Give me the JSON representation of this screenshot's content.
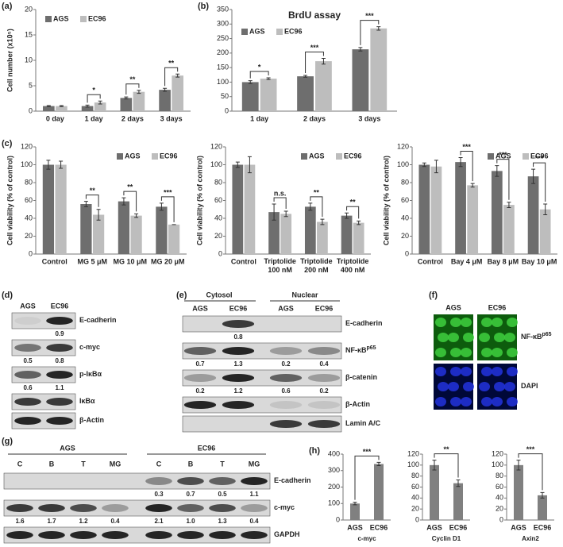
{
  "chart_data": [
    {
      "type": "bar",
      "panel": "(a)",
      "ylabel": "Cell number (x10⁵)",
      "categories": [
        "0 day",
        "1 day",
        "2 days",
        "3 days"
      ],
      "series": [
        {
          "name": "AGS",
          "color": "#6e6e6e",
          "values": [
            1,
            1,
            2.6,
            4.2
          ],
          "errors": [
            0.1,
            0.2,
            0.2,
            0.3
          ]
        },
        {
          "name": "EC96",
          "color": "#bdbdbd",
          "values": [
            1,
            1.7,
            3.8,
            7
          ],
          "errors": [
            0.1,
            0.3,
            0.3,
            0.3
          ]
        }
      ],
      "significance": [
        null,
        "*",
        "**",
        "**"
      ],
      "ylim": [
        0,
        20
      ],
      "yticks": [
        0,
        5,
        10,
        15,
        20
      ],
      "legend": "upper-left"
    },
    {
      "type": "bar",
      "panel": "(b)",
      "title": "BrdU assay",
      "categories": [
        "1 day",
        "2 days",
        "3 days"
      ],
      "series": [
        {
          "name": "AGS",
          "color": "#6e6e6e",
          "values": [
            100,
            120,
            213
          ],
          "errors": [
            5,
            3,
            6
          ]
        },
        {
          "name": "EC96",
          "color": "#bdbdbd",
          "values": [
            112,
            172,
            285
          ],
          "errors": [
            3,
            10,
            6
          ]
        }
      ],
      "significance": [
        "*",
        "***",
        "***"
      ],
      "ylim": [
        0,
        350
      ],
      "yticks": [
        0,
        50,
        100,
        150,
        200,
        250,
        300,
        350
      ],
      "legend": "upper-left"
    },
    {
      "type": "bar",
      "panel": "(c)",
      "ylabel": "Cell viability (% of control)",
      "categories": [
        "Control",
        "MG 5 μM",
        "MG 10 μM",
        "MG 20 μM"
      ],
      "series": [
        {
          "name": "AGS",
          "color": "#6e6e6e",
          "values": [
            100,
            56,
            59,
            53
          ],
          "errors": [
            5,
            3,
            4,
            4
          ]
        },
        {
          "name": "EC96",
          "color": "#bdbdbd",
          "values": [
            100,
            44,
            43,
            33
          ],
          "errors": [
            4,
            6,
            2,
            0
          ]
        }
      ],
      "significance": [
        null,
        "**",
        "**",
        "***"
      ],
      "ylim": [
        0,
        120
      ],
      "yticks": [
        0,
        20,
        40,
        60,
        80,
        100,
        120
      ],
      "legend": "upper-right"
    },
    {
      "type": "bar",
      "ylabel": "Cell viability (% of control)",
      "categories": [
        "Control",
        "Triptolide 100 nM",
        "Triptolide 200 nM",
        "Triptolide 400 nM"
      ],
      "series": [
        {
          "name": "AGS",
          "color": "#6e6e6e",
          "values": [
            100,
            47,
            53,
            43
          ],
          "errors": [
            3,
            9,
            4,
            3
          ]
        },
        {
          "name": "EC96",
          "color": "#bdbdbd",
          "values": [
            100,
            45,
            36,
            35
          ],
          "errors": [
            9,
            3,
            3,
            2
          ]
        }
      ],
      "significance": [
        null,
        "n.s.",
        "**",
        "**"
      ],
      "ylim": [
        0,
        120
      ],
      "yticks": [
        0,
        20,
        40,
        60,
        80,
        100,
        120
      ],
      "legend": "upper-right"
    },
    {
      "type": "bar",
      "ylabel": "Cell viability (% of control)",
      "categories": [
        "Control",
        "Bay 4 μM",
        "Bay 8 μM",
        "Bay 10 μM"
      ],
      "series": [
        {
          "name": "AGS",
          "color": "#6e6e6e",
          "values": [
            100,
            103,
            93,
            87
          ],
          "errors": [
            2,
            5,
            6,
            8
          ]
        },
        {
          "name": "EC96",
          "color": "#bdbdbd",
          "values": [
            98,
            77,
            55,
            50
          ],
          "errors": [
            7,
            2,
            3,
            6
          ]
        }
      ],
      "significance": [
        null,
        "***",
        "***",
        "***"
      ],
      "ylim": [
        0,
        120
      ],
      "yticks": [
        0,
        20,
        40,
        60,
        80,
        100,
        120
      ],
      "legend": "upper-right"
    },
    {
      "type": "bar",
      "panel": "(h)",
      "xlabel": "c-myc",
      "categories": [
        "AGS",
        "EC96"
      ],
      "color": "#808080",
      "values": [
        100,
        340
      ],
      "errors": [
        8,
        10
      ],
      "significance": "***",
      "ylim": [
        0,
        400
      ],
      "yticks": [
        0,
        100,
        200,
        300,
        400
      ]
    },
    {
      "type": "bar",
      "xlabel": "Cyclin D1",
      "categories": [
        "AGS",
        "EC96"
      ],
      "color": "#808080",
      "values": [
        100,
        67
      ],
      "errors": [
        9,
        6
      ],
      "significance": "**",
      "ylim": [
        0,
        120
      ],
      "yticks": [
        0,
        20,
        40,
        60,
        80,
        100,
        120
      ]
    },
    {
      "type": "bar",
      "xlabel": "Axin2",
      "categories": [
        "AGS",
        "EC96"
      ],
      "color": "#808080",
      "values": [
        100,
        45
      ],
      "errors": [
        9,
        5
      ],
      "significance": "***",
      "ylim": [
        0,
        120
      ],
      "yticks": [
        0,
        20,
        40,
        60,
        80,
        100,
        120
      ]
    }
  ],
  "blots": {
    "d": {
      "panel": "(d)",
      "lanes": [
        "AGS",
        "EC96"
      ],
      "rows": [
        {
          "label": "E-cadherin",
          "values": [
            null,
            "0.9"
          ]
        },
        {
          "label": "c-myc",
          "values": [
            "0.5",
            "0.8"
          ]
        },
        {
          "label": "p-IκBα",
          "values": [
            "0.6",
            "1.1"
          ]
        },
        {
          "label": "IκBα"
        },
        {
          "label": "β-Actin"
        }
      ]
    },
    "e": {
      "panel": "(e)",
      "groups": [
        "Cytosol",
        "Nuclear"
      ],
      "lanes": [
        "AGS",
        "EC96",
        "AGS",
        "EC96"
      ],
      "rows": [
        {
          "label": "E-cadherin",
          "values": [
            null,
            "0.8",
            null,
            null
          ]
        },
        {
          "label": "NF-κB",
          "sup": "p65",
          "values": [
            "0.7",
            "1.3",
            "0.2",
            "0.4"
          ]
        },
        {
          "label": "β-catenin",
          "values": [
            "0.2",
            "1.2",
            "0.6",
            "0.2"
          ]
        },
        {
          "label": "β-Actin"
        },
        {
          "label": "Lamin A/C"
        }
      ]
    },
    "g": {
      "panel": "(g)",
      "groups": [
        "AGS",
        "EC96"
      ],
      "lanes": [
        "C",
        "B",
        "T",
        "MG",
        "C",
        "B",
        "T",
        "MG"
      ],
      "rows": [
        {
          "label": "E-cadherin",
          "values": [
            null,
            null,
            null,
            null,
            "0.3",
            "0.7",
            "0.5",
            "1.1"
          ]
        },
        {
          "label": "c-myc",
          "values": [
            "1.6",
            "1.7",
            "1.2",
            "0.4",
            "2.1",
            "1.0",
            "1.3",
            "0.4"
          ]
        },
        {
          "label": "GAPDH"
        }
      ]
    }
  },
  "images": {
    "f": {
      "panel": "(f)",
      "columns": [
        "AGS",
        "EC96"
      ],
      "rows": [
        {
          "label": "NF-κB",
          "sup": "p65"
        },
        {
          "label": "DAPI"
        }
      ]
    }
  }
}
